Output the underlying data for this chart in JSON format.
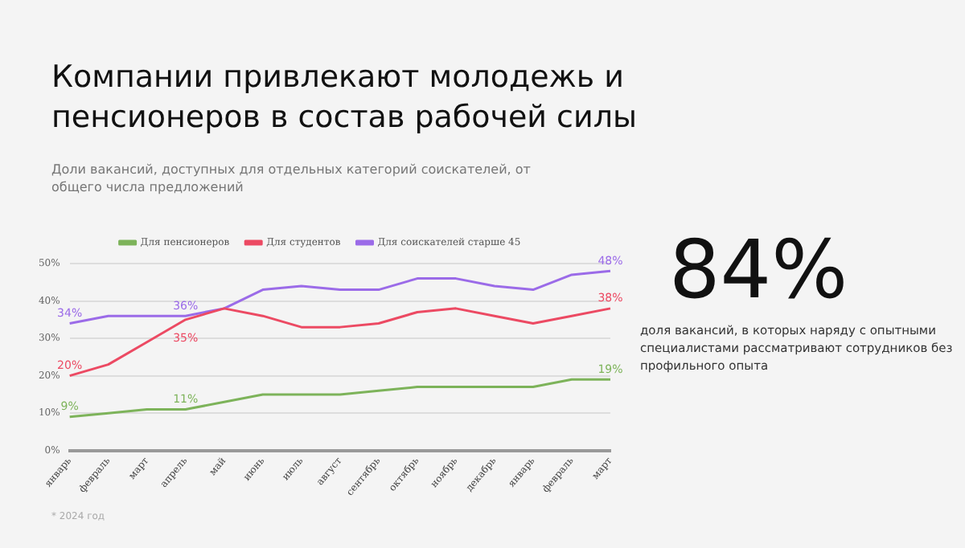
{
  "chart_data": {
    "type": "line",
    "title": "Компании привлекают молодежь и пенсионеров в состав рабочей силы",
    "subtitle": "Доли вакансий, доступных для отдельных категорий соискателей, от общего числа предложений",
    "categories": [
      "январь",
      "февраль",
      "март",
      "апрель",
      "май",
      "июнь",
      "июль",
      "август",
      "сентябрь",
      "октябрь",
      "ноябрь",
      "декабрь",
      "январь",
      "февраль",
      "март"
    ],
    "series": [
      {
        "name": "Для пенсионеров",
        "color": "#7db35a",
        "values": [
          9,
          10,
          11,
          11,
          13,
          15,
          15,
          15,
          16,
          17,
          17,
          17,
          17,
          19,
          19
        ],
        "value_labels": [
          "9%",
          null,
          null,
          "11%",
          null,
          null,
          null,
          null,
          null,
          null,
          null,
          null,
          null,
          null,
          "19%"
        ]
      },
      {
        "name": "Для студентов",
        "color": "#ec4a63",
        "values": [
          20,
          23,
          29,
          35,
          38,
          36,
          33,
          33,
          34,
          37,
          38,
          36,
          34,
          36,
          38
        ],
        "value_labels": [
          "20%",
          null,
          null,
          "35%",
          null,
          null,
          null,
          null,
          null,
          null,
          null,
          null,
          null,
          null,
          "38%"
        ]
      },
      {
        "name": "Для соискателей старше 45",
        "color": "#9b6be8",
        "values": [
          34,
          36,
          36,
          36,
          38,
          43,
          44,
          43,
          43,
          46,
          46,
          44,
          43,
          47,
          48
        ],
        "value_labels": [
          "34%",
          null,
          null,
          "36%",
          null,
          null,
          null,
          null,
          null,
          null,
          null,
          null,
          null,
          null,
          "48%"
        ]
      }
    ],
    "ylim": [
      0,
      50
    ],
    "yticks": [
      {
        "value": 0,
        "label": "0%"
      },
      {
        "value": 10,
        "label": "10%"
      },
      {
        "value": 20,
        "label": "20%"
      },
      {
        "value": 30,
        "label": "30%"
      },
      {
        "value": 40,
        "label": "40%"
      },
      {
        "value": 50,
        "label": "50%"
      }
    ],
    "grid": "y",
    "legend": "top",
    "marker": "none",
    "line_style": "solid",
    "annotations": [
      "84%",
      "доля вакансий, в которых наряду с опытными специалистами рассматривают сотрудников без профильного опыта",
      "* 2024 год"
    ]
  }
}
